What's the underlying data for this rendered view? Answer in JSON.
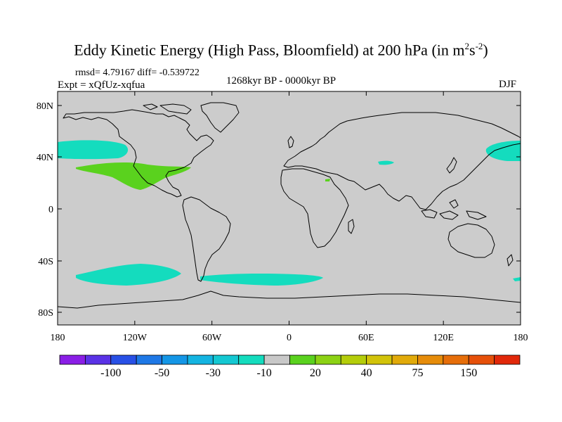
{
  "title": {
    "main": "Eddy Kinetic Energy (High Pass, Bloomfield) at 200 hPa (in m",
    "unit_exp1": "2",
    "unit_mid": "s",
    "unit_exp2": "-2",
    "close": ")"
  },
  "stats": "rmsd= 4.79167 diff= -0.539722",
  "experiment": "Expt = xQfUz-xqfua",
  "period": "1268kyr BP - 0000kyr BP",
  "season": "DJF",
  "lat_labels": [
    "80N",
    "40N",
    "0",
    "40S",
    "80S"
  ],
  "lon_labels": [
    "180",
    "120W",
    "60W",
    "0",
    "60E",
    "120E",
    "180"
  ],
  "colorbar": {
    "colors": [
      "#8a1ee6",
      "#5a32e6",
      "#2850e6",
      "#1e78e6",
      "#1496e6",
      "#14b4e1",
      "#14c8d2",
      "#14dcbe",
      "#c8c8c8",
      "#5ad21e",
      "#8cd214",
      "#b4cd0a",
      "#d2c30a",
      "#e1aa0a",
      "#e68c0a",
      "#e66e0a",
      "#e6500a",
      "#e1280a"
    ],
    "labels": [
      "-100",
      "-50",
      "-30",
      "-10",
      "20",
      "40",
      "75",
      "150"
    ]
  },
  "map": {
    "background": "#cccccc",
    "anomaly_cyan": "#14dcbe",
    "anomaly_green": "#5ad21e"
  }
}
